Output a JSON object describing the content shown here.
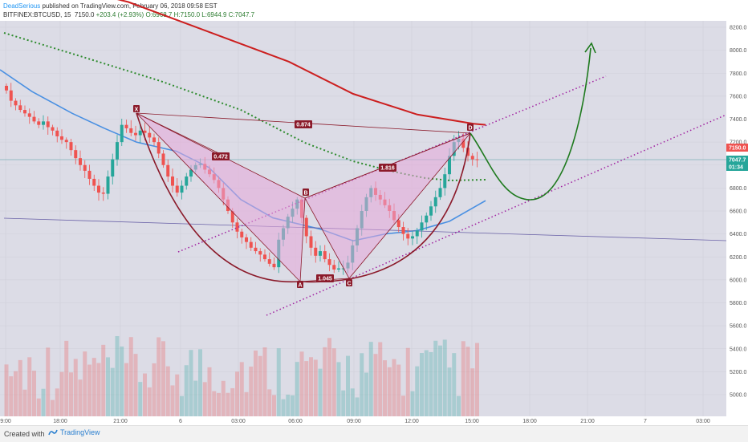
{
  "header": {
    "author": "DeadSerious",
    "published": "published on TradingView.com, February 06, 2018 09:58 EST",
    "symbol": "BITFINEX:BTCUSD, 15",
    "last": "7150.0",
    "change": "+203.4 (+2.93%)",
    "ohlc": "O:6968.7 H:7150.0 L:6944.9 C:7047.7"
  },
  "footer": {
    "created_with": "Created with",
    "brand": "TradingView",
    "brand_icon": "tradingview-logo-icon"
  },
  "colors": {
    "up": "#26a69a",
    "down": "#ef5350",
    "ema_red": "#cc1f1f",
    "ma_blue": "#4a90e2",
    "ma_green_dotted": "#2e8b2e",
    "channel": "#a020a0",
    "pattern_fill": "#e6a8d8",
    "pattern_line": "#8b1a2a",
    "projection": "#1e7a1e",
    "background": "#dcdce6"
  },
  "chart_data": {
    "type": "candlestick",
    "symbol": "BITFINEX:BTCUSD",
    "interval": "15",
    "ylim": [
      4900,
      8300
    ],
    "y_ticks": [
      "8200.0",
      "8000.0",
      "7800.0",
      "7600.0",
      "7400.0",
      "7200.0",
      "7000.0",
      "6800.0",
      "6600.0",
      "6400.0",
      "6200.0",
      "6000.0",
      "5800.0",
      "5600.0",
      "5400.0",
      "5200.0",
      "5000.0"
    ],
    "x_ticks": [
      "9:00",
      "18:00",
      "21:00",
      "6",
      "03:00",
      "06:00",
      "09:00",
      "12:00",
      "15:00",
      "18:00",
      "21:00",
      "7",
      "03:00"
    ],
    "price_labels": {
      "last": "7150.0",
      "close": "7047.7",
      "countdown": "01:34"
    },
    "pattern_points": [
      "X",
      "A",
      "B",
      "C",
      "D"
    ],
    "ratios": [
      "0.874",
      "0.472",
      "1.816",
      "1.045"
    ],
    "closes": [
      7650,
      7560,
      7520,
      7480,
      7450,
      7420,
      7380,
      7350,
      7380,
      7330,
      7300,
      7250,
      7220,
      7200,
      7130,
      7060,
      7000,
      6950,
      6880,
      6820,
      6760,
      6750,
      6900,
      7050,
      7200,
      7350,
      7320,
      7280,
      7260,
      7300,
      7280,
      7240,
      7200,
      7100,
      7000,
      6900,
      6820,
      6760,
      6820,
      6900,
      6960,
      7000,
      7010,
      6960,
      6920,
      6870,
      6800,
      6700,
      6600,
      6500,
      6420,
      6370,
      6330,
      6280,
      6250,
      6220,
      6180,
      6140,
      6110,
      6350,
      6450,
      6550,
      6620,
      6700,
      6540,
      6380,
      6280,
      6210,
      6250,
      6180,
      6130,
      6090,
      6100,
      6100,
      6150,
      6300,
      6450,
      6600,
      6720,
      6800,
      6740,
      6700,
      6650,
      6600,
      6520,
      6460,
      6400,
      6360,
      6380,
      6430,
      6500,
      6560,
      6640,
      6720,
      6800,
      6920,
      7080,
      7200,
      7230,
      7150,
      7080,
      7050,
      7047.7
    ]
  }
}
